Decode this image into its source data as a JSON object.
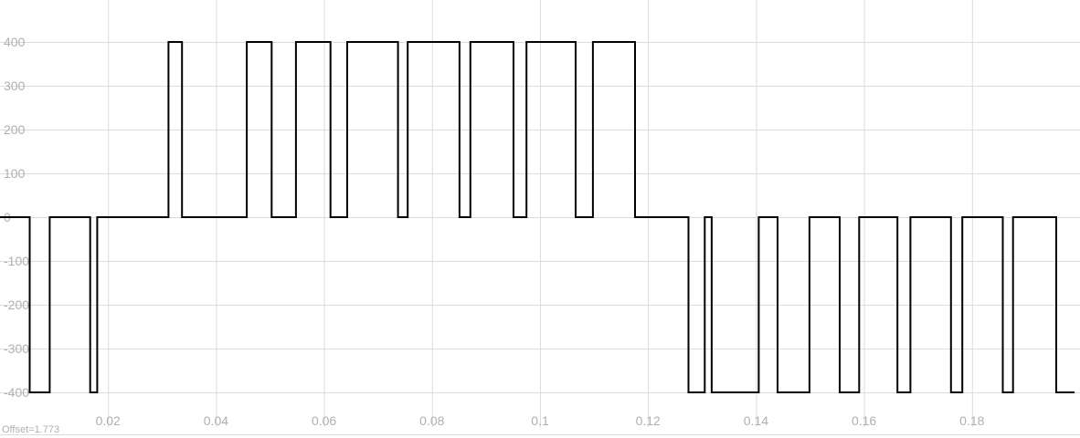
{
  "chart_data": {
    "type": "line",
    "xlim": [
      0,
      0.2
    ],
    "ylim": [
      -400,
      400
    ],
    "x_ticks": [
      0.02,
      0.04,
      0.06,
      0.08,
      0.1,
      0.12,
      0.14,
      0.16,
      0.18
    ],
    "x_tick_labels": [
      "0.02",
      "0.04",
      "0.06",
      "0.08",
      "0.1",
      "0.12",
      "0.14",
      "0.16",
      "0.18"
    ],
    "y_ticks": [
      400,
      300,
      200,
      100,
      0,
      -100,
      -200,
      -300,
      -400
    ],
    "y_tick_labels": [
      "400",
      "300",
      "200",
      "100",
      "0",
      "-100",
      "-200",
      "-300",
      "-400"
    ],
    "grid": true,
    "offset_label": "Offset=1.773",
    "line_color": "#000000",
    "grid_color": "#dcdcdc",
    "series": [
      {
        "step": true,
        "x": [
          0,
          0.0055,
          0.0092,
          0.0167,
          0.018,
          0.0312,
          0.0337,
          0.0457,
          0.0503,
          0.0548,
          0.0612,
          0.0643,
          0.0737,
          0.0755,
          0.0851,
          0.0871,
          0.0951,
          0.0975,
          0.1066,
          0.1098,
          0.1176,
          0.1193,
          0.1275,
          0.1305,
          0.1318,
          0.1405,
          0.144,
          0.1499,
          0.1555,
          0.1591,
          0.1662,
          0.1686,
          0.1761,
          0.1782,
          0.1857,
          0.1876,
          0.1956,
          0.199
        ],
        "y": [
          0,
          -400,
          0,
          -400,
          0,
          400,
          0,
          400,
          0,
          400,
          0,
          400,
          0,
          400,
          0,
          400,
          0,
          400,
          0,
          400,
          0,
          0,
          -400,
          0,
          -400,
          0,
          -400,
          0,
          -400,
          0,
          -400,
          0,
          -400,
          0,
          -400,
          0,
          -400,
          -400
        ]
      }
    ]
  }
}
